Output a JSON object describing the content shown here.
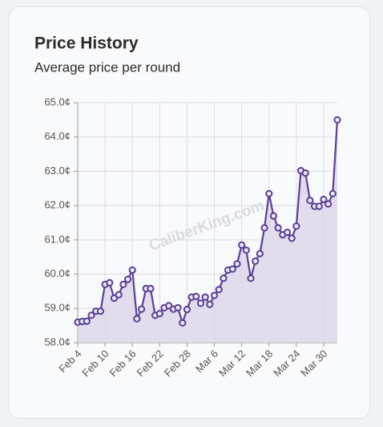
{
  "chart_data": {
    "type": "line",
    "title": "Price History",
    "subtitle": "Average price per round",
    "watermark": "CaliberKing.com",
    "categories": [
      "Feb 4",
      null,
      null,
      null,
      null,
      null,
      "Feb 10",
      null,
      null,
      null,
      null,
      null,
      "Feb 16",
      null,
      null,
      null,
      null,
      null,
      "Feb 22",
      null,
      null,
      null,
      null,
      null,
      "Feb 28",
      null,
      null,
      null,
      null,
      null,
      "Mar 6",
      null,
      null,
      null,
      null,
      null,
      "Mar 12",
      null,
      null,
      null,
      null,
      null,
      "Mar 18",
      null,
      null,
      null,
      null,
      null,
      "Mar 24",
      null,
      null,
      null,
      null,
      null,
      "Mar 30",
      null,
      null,
      null
    ],
    "values": [
      58.6,
      58.62,
      58.63,
      58.8,
      58.92,
      58.92,
      59.7,
      59.75,
      59.3,
      59.4,
      59.7,
      59.85,
      60.12,
      58.7,
      58.98,
      59.58,
      59.58,
      58.8,
      58.85,
      59.02,
      59.08,
      58.98,
      59.02,
      58.58,
      58.97,
      59.33,
      59.35,
      59.15,
      59.33,
      59.12,
      59.38,
      59.55,
      59.88,
      60.12,
      60.15,
      60.3,
      60.85,
      60.7,
      59.88,
      60.38,
      60.6,
      61.35,
      62.35,
      61.7,
      61.35,
      61.15,
      61.22,
      61.05,
      61.4,
      63.02,
      62.95,
      62.15,
      61.98,
      61.98,
      62.18,
      62.05,
      62.35,
      64.5
    ],
    "color": "#5a3f97",
    "fill_color": "#ddd7e9",
    "ylim": [
      58,
      65
    ],
    "yticks": [
      {
        "value": 58,
        "label": "58.0¢"
      },
      {
        "value": 59,
        "label": "59.0¢"
      },
      {
        "value": 60,
        "label": "60.0¢"
      },
      {
        "value": 61,
        "label": "61.0¢"
      },
      {
        "value": 62,
        "label": "62.0¢"
      },
      {
        "value": 63,
        "label": "63.0¢"
      },
      {
        "value": 64,
        "label": "64.0¢"
      },
      {
        "value": 65,
        "label": "65.0¢"
      }
    ],
    "grid": true
  }
}
